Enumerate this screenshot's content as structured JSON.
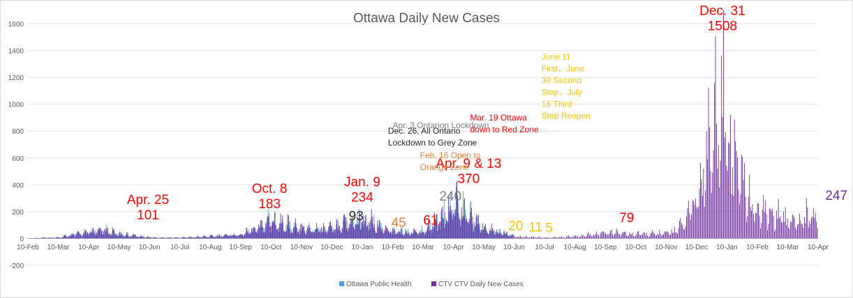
{
  "chart_data": {
    "type": "bar",
    "title": "Ottawa Daily New Cases",
    "ylim": [
      -200,
      1600
    ],
    "yticks": [
      -200,
      0,
      200,
      400,
      600,
      800,
      1000,
      1200,
      1400,
      1600
    ],
    "xtick_labels": [
      "10-Feb",
      "10-Mar",
      "10-Apr",
      "10-May",
      "10-Jun",
      "10-Jul",
      "10-Aug",
      "10-Sep",
      "10-Oct",
      "10-Nov",
      "10-Dec",
      "10-Jan",
      "10-Feb",
      "10-Mar",
      "10-Apr",
      "10-May",
      "10-Jun",
      "10-Jul",
      "10-Aug",
      "10-Sep",
      "10-Oct",
      "10-Nov",
      "10-Dec",
      "10-Jan",
      "10-Feb",
      "10-Mar",
      "10-Apr"
    ],
    "grid": true,
    "legend_position": "bottom",
    "series": [
      {
        "name": "Ottawa Public Health",
        "color": "#5b9bd5",
        "period_start_month": 0,
        "period_end_month": 16,
        "points": [
          [
            0,
            2
          ],
          [
            1,
            10
          ],
          [
            1.5,
            40
          ],
          [
            2,
            60
          ],
          [
            2.5,
            80
          ],
          [
            3,
            40
          ],
          [
            4,
            10
          ],
          [
            5,
            8
          ],
          [
            6,
            20
          ],
          [
            7,
            40
          ],
          [
            7.5,
            90
          ],
          [
            8,
            175
          ],
          [
            8.5,
            140
          ],
          [
            9,
            90
          ],
          [
            10,
            90
          ],
          [
            10.5,
            150
          ],
          [
            11,
            200
          ],
          [
            11.5,
            130
          ],
          [
            12,
            60
          ],
          [
            13,
            70
          ],
          [
            13.5,
            180
          ],
          [
            14,
            330
          ],
          [
            14.5,
            220
          ],
          [
            15,
            110
          ],
          [
            16,
            20
          ]
        ]
      },
      {
        "name": "CTV CTV Daily New Cases",
        "color": "#7030a0",
        "period_start_month": 0,
        "period_end_month": 26,
        "points": [
          [
            0,
            2
          ],
          [
            1,
            10
          ],
          [
            1.5,
            40
          ],
          [
            2,
            60
          ],
          [
            2.5,
            80
          ],
          [
            3,
            40
          ],
          [
            4,
            10
          ],
          [
            5,
            8
          ],
          [
            6,
            20
          ],
          [
            7,
            40
          ],
          [
            7.5,
            90
          ],
          [
            8,
            175
          ],
          [
            8.5,
            140
          ],
          [
            9,
            90
          ],
          [
            10,
            90
          ],
          [
            10.5,
            150
          ],
          [
            11,
            200
          ],
          [
            11.5,
            130
          ],
          [
            12,
            60
          ],
          [
            13,
            70
          ],
          [
            13.5,
            180
          ],
          [
            14,
            330
          ],
          [
            14.5,
            220
          ],
          [
            15,
            110
          ],
          [
            16,
            20
          ],
          [
            17,
            8
          ],
          [
            18,
            20
          ],
          [
            19,
            60
          ],
          [
            20,
            40
          ],
          [
            21,
            50
          ],
          [
            21.5,
            120
          ],
          [
            22,
            400
          ],
          [
            22.3,
            900
          ],
          [
            22.6,
            1100
          ],
          [
            22.85,
            1508
          ],
          [
            23,
            1200
          ],
          [
            23.3,
            700
          ],
          [
            23.7,
            400
          ],
          [
            24,
            260
          ],
          [
            25,
            180
          ],
          [
            25.5,
            200
          ],
          [
            25.9,
            260
          ],
          [
            26,
            247
          ]
        ]
      }
    ],
    "annotations": [
      {
        "lines": [
          "Apr. 25",
          "101"
        ],
        "color": "#ff0000",
        "size": "large",
        "month": 3.95,
        "value": 101
      },
      {
        "lines": [
          "Oct. 8",
          "183"
        ],
        "color": "#ff0000",
        "size": "large",
        "month": 7.95,
        "value": 183
      },
      {
        "lines": [
          "93"
        ],
        "color": "#262626",
        "size": "large",
        "month": 10.8,
        "value": 93
      },
      {
        "lines": [
          "Jan. 9",
          "234"
        ],
        "color": "#ff0000",
        "size": "large",
        "month": 11.0,
        "value": 234
      },
      {
        "lines": [
          "45"
        ],
        "color": "#ed7d31",
        "size": "large",
        "month": 12.2,
        "value": 45
      },
      {
        "lines": [
          "61"
        ],
        "color": "#ff0000",
        "size": "large",
        "month": 13.25,
        "value": 61
      },
      {
        "lines": [
          "240"
        ],
        "color": "#7f7f7f",
        "size": "large",
        "month": 13.9,
        "value": 240
      },
      {
        "lines": [
          "Apr. 9 & 13",
          "370"
        ],
        "color": "#ff0000",
        "size": "large",
        "month": 14.5,
        "value": 370
      },
      {
        "lines": [
          "20"
        ],
        "color": "#ffc000",
        "size": "large",
        "month": 16.05,
        "value": 20
      },
      {
        "lines": [
          "11"
        ],
        "color": "#ffc000",
        "size": "large",
        "month": 16.7,
        "value": 11
      },
      {
        "lines": [
          "5"
        ],
        "color": "#ffc000",
        "size": "large",
        "month": 17.15,
        "value": 5
      },
      {
        "lines": [
          "79"
        ],
        "color": "#ff0000",
        "size": "large",
        "month": 19.7,
        "value": 79
      },
      {
        "lines": [
          "Dec. 31",
          "1508"
        ],
        "color": "#ff0000",
        "size": "large",
        "month": 22.85,
        "value": 1508
      },
      {
        "lines": [
          "247"
        ],
        "color": "#7030a0",
        "size": "large",
        "month": 26.6,
        "value": 247
      },
      {
        "lines": [
          "Apr. 3 Ontarion Lockdown"
        ],
        "color": "#7f7f7f",
        "size": "small",
        "month": 12.0,
        "value": 780
      },
      {
        "lines": [
          "Dec. 26, All Ontario",
          "Lockdown to Grey Zone"
        ],
        "color": "#262626",
        "size": "small",
        "month": 11.85,
        "value": 650
      },
      {
        "lines": [
          "Feb. 16 Open to",
          "Orange Zone"
        ],
        "color": "#ed7d31",
        "size": "small",
        "month": 12.9,
        "value": 470
      },
      {
        "lines": [
          "Mar. 19 Ottawa",
          "down to Red Zone"
        ],
        "color": "#ff0000",
        "size": "small",
        "month": 14.55,
        "value": 750
      },
      {
        "lines": [
          "June 11",
          "First，June",
          "30 Second",
          "Step，July",
          "16 Third",
          "Step Reopen"
        ],
        "color": "#ffc000",
        "size": "small",
        "month": 16.9,
        "value": 850
      }
    ]
  }
}
